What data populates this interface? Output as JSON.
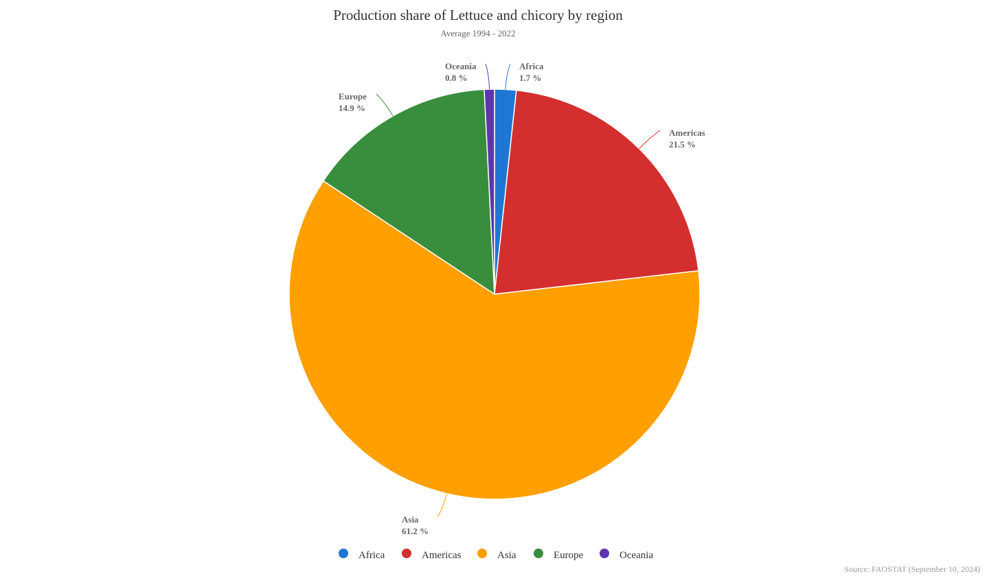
{
  "chart_data": {
    "type": "pie",
    "title": "Production share of Lettuce and chicory by region",
    "subtitle": "Average 1994 - 2022",
    "unit": "%",
    "slices": [
      {
        "name": "Africa",
        "value": 1.7,
        "label": "1.7 %",
        "color": "#1f77d4"
      },
      {
        "name": "Americas",
        "value": 21.5,
        "label": "21.5 %",
        "color": "#d32f2f"
      },
      {
        "name": "Asia",
        "value": 61.2,
        "label": "61.2 %",
        "color": "#ffa000"
      },
      {
        "name": "Europe",
        "value": 14.9,
        "label": "14.9 %",
        "color": "#388e3c"
      },
      {
        "name": "Oceania",
        "value": 0.8,
        "label": "0.8 %",
        "color": "#5e35b1"
      }
    ],
    "legend_position": "bottom-center",
    "source": "Source: FAOSTAT (September 10, 2024)"
  }
}
